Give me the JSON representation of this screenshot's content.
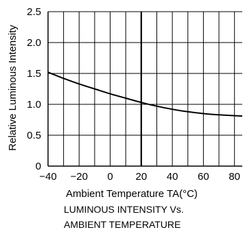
{
  "chart_data": {
    "type": "line",
    "title": "",
    "xlabel": "Ambient Temperature TA(°C)",
    "ylabel": "Relative Luminous Intensity",
    "caption": [
      "LUMINOUS INTENSITY Vs.",
      "AMBIENT TEMPERATURE"
    ],
    "xlim": [
      -40,
      85
    ],
    "ylim": [
      0,
      2.5
    ],
    "x_ticks": [
      -40,
      -20,
      0,
      20,
      40,
      60,
      80
    ],
    "x_tick_labels": [
      "−40",
      "−20",
      "0",
      "20",
      "40",
      "60",
      "80"
    ],
    "y_ticks": [
      0,
      0.5,
      1.0,
      1.5,
      2.0,
      2.5
    ],
    "y_tick_labels": [
      "0",
      "0.5",
      "1.0",
      "1.5",
      "2.0",
      "2.5"
    ],
    "x_gridlines": [
      -30,
      -20,
      -10,
      0,
      10,
      20,
      30,
      40,
      50,
      60,
      70,
      80
    ],
    "y_gridlines": [
      0.5,
      1.0,
      1.5,
      2.0,
      2.5
    ],
    "grid": true,
    "reference_line_x": 20,
    "series": [
      {
        "x": [
          -40,
          -30,
          -20,
          -10,
          0,
          10,
          20,
          30,
          40,
          50,
          60,
          70,
          85
        ],
        "values": [
          1.52,
          1.42,
          1.33,
          1.25,
          1.17,
          1.1,
          1.03,
          0.97,
          0.92,
          0.88,
          0.85,
          0.83,
          0.81
        ]
      }
    ],
    "colors": {
      "line": "#000000",
      "grid": "#000000",
      "background": "#ffffff"
    }
  }
}
